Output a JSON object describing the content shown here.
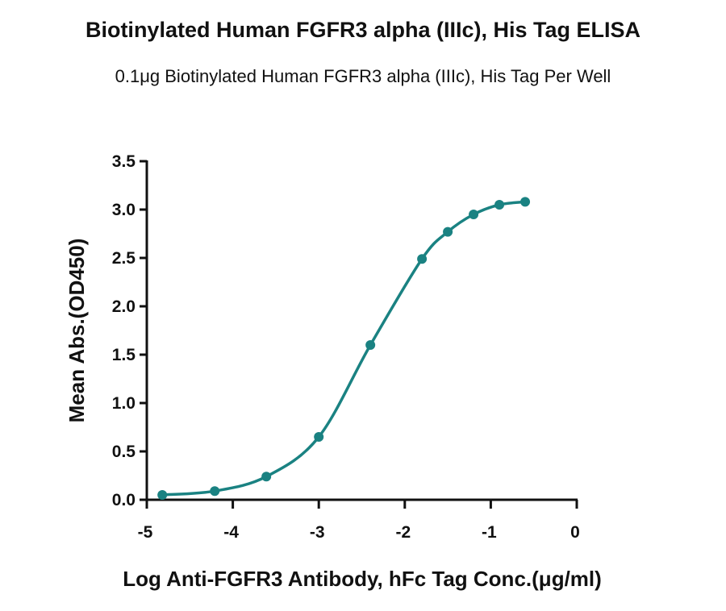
{
  "chart_data": {
    "type": "line",
    "title": "Biotinylated Human FGFR3 alpha (IIIc), His Tag ELISA",
    "subtitle": "0.1μg Biotinylated Human FGFR3 alpha (IIIc), His Tag Per Well",
    "xlabel": "Log Anti-FGFR3 Antibody, hFc Tag Conc.(μg/ml)",
    "ylabel": "Mean Abs.(OD450)",
    "xlim": [
      -5,
      0
    ],
    "ylim": [
      0,
      3.5
    ],
    "x_ticks": [
      -5,
      -4,
      -3,
      -2,
      -1,
      0
    ],
    "x_tick_labels": [
      "-5",
      "-4",
      "-3",
      "-2",
      "-1",
      "0"
    ],
    "y_ticks": [
      0,
      0.5,
      1.0,
      1.5,
      2.0,
      2.5,
      3.0,
      3.5
    ],
    "y_tick_labels": [
      "0.0",
      "0.5",
      "1.0",
      "1.5",
      "2.0",
      "2.5",
      "3.0",
      "3.5"
    ],
    "color": "#1a8282",
    "series": [
      {
        "x": [
          -4.82,
          -4.21,
          -3.61,
          -3.0,
          -2.4,
          -1.8,
          -1.5,
          -1.2,
          -0.9,
          -0.6
        ],
        "y": [
          0.05,
          0.09,
          0.24,
          0.65,
          1.6,
          2.49,
          2.77,
          2.95,
          3.05,
          3.08
        ]
      }
    ],
    "legend": "none",
    "grid": false
  }
}
